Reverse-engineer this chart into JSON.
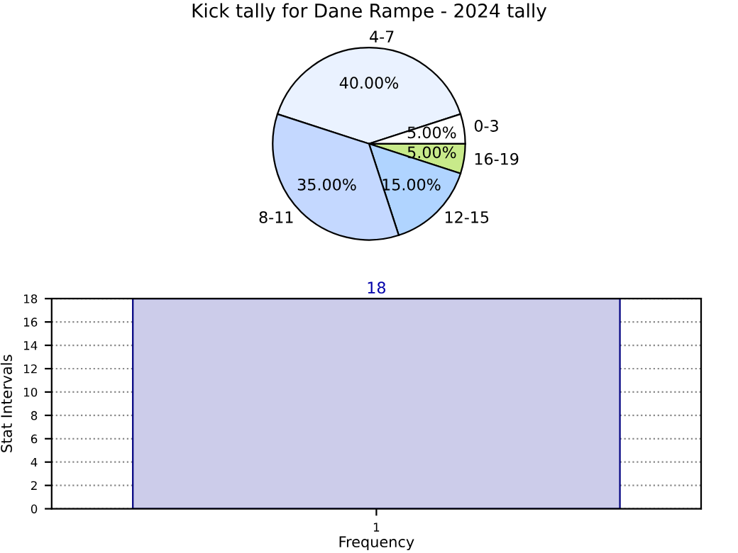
{
  "chart_data": [
    {
      "type": "pie",
      "title": "Kick tally for Dane Rampe - 2024 tally",
      "categories": [
        "4-7",
        "0-3",
        "16-19",
        "12-15",
        "8-11"
      ],
      "values": [
        40,
        5,
        5,
        15,
        35
      ],
      "value_labels": [
        "40.00%",
        "5.00%",
        "5.00%",
        "15.00%",
        "35.00%"
      ],
      "colors": [
        "#eaf2ff",
        "#ffffff",
        "#c8ea8a",
        "#b0d4ff",
        "#c4d8ff"
      ]
    },
    {
      "type": "bar",
      "categories": [
        "1"
      ],
      "values": [
        18
      ],
      "color": "#ccccea",
      "xlabel": "Frequency",
      "ylabel": "Stat Intervals",
      "ylim": [
        0,
        18
      ],
      "yticks": [
        0,
        2,
        4,
        6,
        8,
        10,
        12,
        14,
        16,
        18
      ],
      "grid": true,
      "data_labels": true
    }
  ]
}
